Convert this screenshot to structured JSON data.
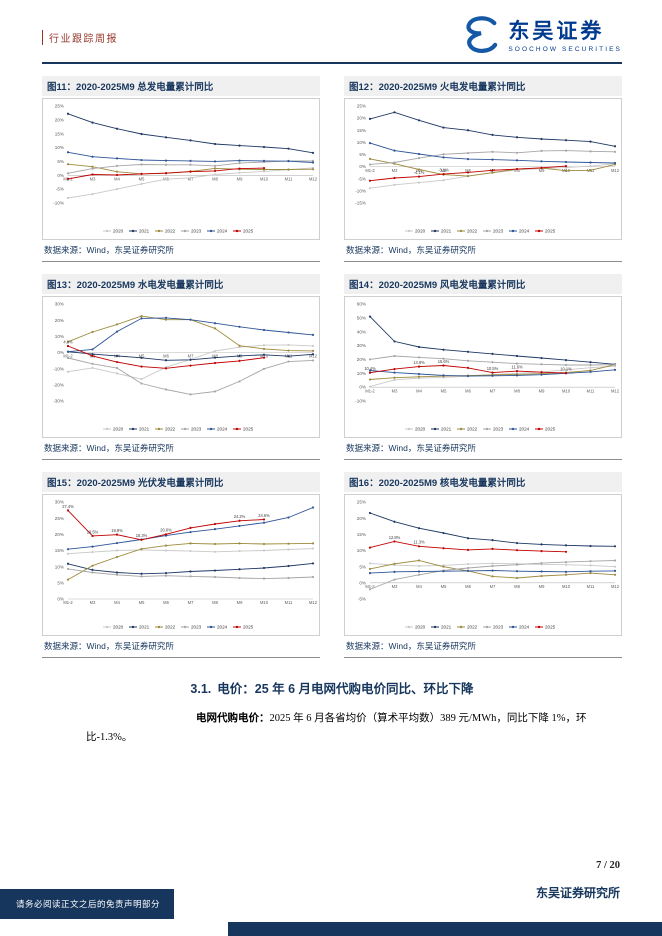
{
  "header": {
    "report_type": "行业跟踪周报",
    "brand": "东吴证券",
    "brand_sub": "SOOCHOW SECURITIES"
  },
  "source_note": "数据来源：Wind，东吴证券研究所",
  "chart_x_categories": [
    "M1-2",
    "M3",
    "M4",
    "M5",
    "M6",
    "M7",
    "M8",
    "M9",
    "M10",
    "M11",
    "M12"
  ],
  "series_colors": {
    "2020": "#c9c9c9",
    "2021": "#1f3864",
    "2022": "#9e8b3d",
    "2023": "#a6a6a6",
    "2024": "#2f5597",
    "2025": "#c00000"
  },
  "charts": [
    {
      "title": "图11：2020-2025M9 总发电量累计同比",
      "type": "line",
      "ylim": [
        -10,
        25
      ],
      "ystep": 5,
      "series": [
        {
          "name": "2020",
          "values": [
            -8.2,
            -6.8,
            -5.0,
            -3.1,
            -1.4,
            -0.9,
            0.3,
            0.9,
            1.4,
            2.0,
            2.7
          ]
        },
        {
          "name": "2021",
          "values": [
            22.2,
            19.0,
            16.8,
            14.9,
            13.7,
            12.6,
            11.3,
            10.7,
            10.2,
            9.6,
            8.1
          ]
        },
        {
          "name": "2022",
          "values": [
            4.0,
            3.1,
            1.3,
            0.5,
            0.7,
            1.4,
            2.5,
            2.2,
            2.1,
            2.1,
            2.2
          ]
        },
        {
          "name": "2023",
          "values": [
            0.7,
            2.4,
            3.4,
            3.9,
            3.8,
            3.8,
            3.4,
            4.4,
            4.8,
            5.2,
            5.2
          ]
        },
        {
          "name": "2024",
          "values": [
            8.3,
            6.7,
            6.1,
            5.5,
            5.3,
            5.2,
            5.0,
            5.3,
            5.2,
            5.1,
            4.6
          ]
        },
        {
          "name": "2025",
          "values": [
            -1.3,
            0.3,
            0.1,
            0.5,
            0.8,
            1.3,
            1.6,
            2.4,
            2.6,
            null,
            null
          ]
        }
      ]
    },
    {
      "title": "图12：2020-2025M9 火电发电量累计同比",
      "type": "line",
      "ylim": [
        -15,
        25
      ],
      "ystep": 5,
      "series": [
        {
          "name": "2020",
          "values": [
            -8.9,
            -7.5,
            -6.6,
            -5.6,
            -3.9,
            -2.5,
            -1.4,
            -0.8,
            -0.4,
            0.2,
            1.2
          ]
        },
        {
          "name": "2021",
          "values": [
            19.7,
            22.4,
            19.1,
            16.1,
            15.0,
            13.1,
            12.1,
            11.4,
            10.9,
            10.3,
            8.4
          ]
        },
        {
          "name": "2022",
          "values": [
            3.2,
            1.2,
            -1.2,
            -3.3,
            -3.9,
            -2.5,
            -1.0,
            -0.6,
            -1.7,
            -1.5,
            0.9
          ]
        },
        {
          "name": "2023",
          "values": [
            0.9,
            1.7,
            3.5,
            5.1,
            5.6,
            6.1,
            5.7,
            6.5,
            6.6,
            6.3,
            6.1
          ]
        },
        {
          "name": "2024",
          "values": [
            9.7,
            6.6,
            5.2,
            3.8,
            3.1,
            2.9,
            2.6,
            2.2,
            1.9,
            1.7,
            1.5
          ]
        },
        {
          "name": "2025",
          "values": [
            -5.8,
            -4.7,
            -4.1,
            -3.1,
            -2.4,
            -1.5,
            -1.0,
            -0.5,
            0.2,
            null,
            null
          ],
          "labels": [
            null,
            null,
            "-4.1%",
            "-3.1%",
            null,
            null,
            null,
            null,
            null,
            null,
            null
          ]
        }
      ]
    },
    {
      "title": "图13：2020-2025M9 水电发电量累计同比",
      "type": "line",
      "ylim": [
        -30,
        30
      ],
      "ystep": 10,
      "series": [
        {
          "name": "2020",
          "values": [
            -11.9,
            -9.5,
            -12.9,
            -16.5,
            -9.1,
            -4.3,
            0.9,
            3.3,
            4.5,
            4.7,
            4.1
          ]
        },
        {
          "name": "2021",
          "values": [
            0.5,
            -1.0,
            -2.1,
            -3.3,
            -4.8,
            -4.5,
            -3.2,
            -2.1,
            -1.4,
            -2.3,
            -1.1
          ]
        },
        {
          "name": "2022",
          "values": [
            6.6,
            12.7,
            17.4,
            22.5,
            20.3,
            20.3,
            14.9,
            4.2,
            2.2,
            1.2,
            1.0
          ]
        },
        {
          "name": "2023",
          "values": [
            -3.4,
            -7.0,
            -9.6,
            -19.2,
            -22.9,
            -25.9,
            -24.1,
            -17.9,
            -10.1,
            -5.6,
            -4.9
          ]
        },
        {
          "name": "2024",
          "values": [
            0.5,
            1.9,
            12.9,
            21.1,
            21.4,
            20.3,
            18.1,
            15.9,
            13.9,
            12.4,
            10.9
          ]
        },
        {
          "name": "2025",
          "values": [
            4.0,
            -2.1,
            -5.9,
            -8.7,
            -9.8,
            -8.1,
            -6.5,
            -5.2,
            -3.2,
            null,
            null
          ],
          "labels": [
            "4.0%",
            null,
            null,
            null,
            null,
            null,
            null,
            null,
            null,
            null,
            null
          ]
        }
      ]
    },
    {
      "title": "图14：2020-2025M9 风电发电量累计同比",
      "type": "line",
      "ylim": [
        -10,
        60
      ],
      "ystep": 10,
      "series": [
        {
          "name": "2020",
          "values": [
            0.4,
            5.2,
            6.5,
            7.0,
            7.9,
            9.0,
            10.0,
            11.0,
            12.5,
            14.0,
            15.1
          ]
        },
        {
          "name": "2021",
          "values": [
            50.9,
            33.0,
            29.0,
            27.0,
            25.5,
            24.0,
            22.5,
            21.0,
            19.5,
            18.0,
            16.5
          ]
        },
        {
          "name": "2022",
          "values": [
            5.5,
            6.8,
            7.5,
            8.0,
            8.3,
            8.8,
            9.2,
            9.8,
            10.5,
            12.0,
            16.3
          ]
        },
        {
          "name": "2023",
          "values": [
            20.0,
            22.5,
            21.5,
            20.5,
            19.0,
            18.0,
            17.0,
            16.5,
            16.0,
            16.0,
            16.2
          ]
        },
        {
          "name": "2024",
          "values": [
            12.0,
            10.5,
            9.5,
            8.5,
            8.0,
            8.2,
            8.5,
            9.0,
            10.0,
            11.0,
            12.5
          ]
        },
        {
          "name": "2025",
          "values": [
            10.4,
            13.0,
            14.8,
            15.6,
            13.9,
            10.5,
            11.6,
            10.8,
            10.1,
            null,
            null
          ],
          "labels": [
            "10.4%",
            null,
            "14.8%",
            "15.6%",
            null,
            "10.5%",
            "11.6%",
            null,
            "10.1%",
            null,
            null
          ]
        }
      ]
    },
    {
      "title": "图15：2020-2025M9 光伏发电量累计同比",
      "type": "line",
      "ylim": [
        0,
        30
      ],
      "ystep": 5,
      "series": [
        {
          "name": "2020",
          "values": [
            14.0,
            14.5,
            15.0,
            15.2,
            15.0,
            14.8,
            14.6,
            14.8,
            15.0,
            15.3,
            15.6
          ]
        },
        {
          "name": "2021",
          "values": [
            10.9,
            9.0,
            8.2,
            7.8,
            8.0,
            8.5,
            8.8,
            9.2,
            9.6,
            10.2,
            11.0
          ]
        },
        {
          "name": "2022",
          "values": [
            6.0,
            10.3,
            13.0,
            15.5,
            16.5,
            17.2,
            17.0,
            17.2,
            17.0,
            17.1,
            17.2
          ]
        },
        {
          "name": "2023",
          "values": [
            9.3,
            8.2,
            7.5,
            7.0,
            7.2,
            7.0,
            6.8,
            6.5,
            6.3,
            6.5,
            6.8
          ]
        },
        {
          "name": "2024",
          "values": [
            15.4,
            16.2,
            17.3,
            18.4,
            19.6,
            20.7,
            21.6,
            22.6,
            23.6,
            25.2,
            28.3
          ]
        },
        {
          "name": "2025",
          "values": [
            27.4,
            19.5,
            19.9,
            18.3,
            20.0,
            22.0,
            23.2,
            24.2,
            24.6,
            null,
            null
          ],
          "labels": [
            "27.4%",
            "19.5%",
            "19.9%",
            "18.3%",
            "20.0%",
            null,
            null,
            "24.2%",
            "24.6%",
            null,
            null
          ]
        }
      ]
    },
    {
      "title": "图16：2020-2025M9 核电发电量累计同比",
      "type": "line",
      "ylim": [
        -5,
        25
      ],
      "ystep": 5,
      "series": [
        {
          "name": "2020",
          "values": [
            6.0,
            5.5,
            5.2,
            5.4,
            5.8,
            6.0,
            5.9,
            5.7,
            5.6,
            5.4,
            5.0
          ]
        },
        {
          "name": "2021",
          "values": [
            21.6,
            18.9,
            16.9,
            15.4,
            13.8,
            13.2,
            12.3,
            11.9,
            11.6,
            11.4,
            11.3
          ]
        },
        {
          "name": "2022",
          "values": [
            4.3,
            5.9,
            6.9,
            5.0,
            3.7,
            2.0,
            1.5,
            2.1,
            2.5,
            3.0,
            2.5
          ]
        },
        {
          "name": "2023",
          "values": [
            -2.0,
            1.0,
            2.5,
            3.8,
            4.6,
            5.2,
            5.6,
            6.1,
            6.4,
            6.7,
            6.9
          ]
        },
        {
          "name": "2024",
          "values": [
            3.0,
            3.4,
            3.5,
            3.6,
            3.7,
            3.8,
            3.6,
            3.5,
            3.4,
            3.6,
            3.7
          ]
        },
        {
          "name": "2025",
          "values": [
            10.9,
            12.8,
            11.3,
            10.7,
            10.2,
            10.5,
            10.1,
            9.8,
            9.6,
            null,
            null
          ],
          "labels": [
            null,
            "12.8%",
            "11.3%",
            null,
            null,
            null,
            null,
            null,
            null,
            null,
            null
          ]
        }
      ]
    }
  ],
  "section": {
    "number": "3.1.",
    "title": "电价：25 年 6 月电网代购电价同比、环比下降",
    "body_lead": "电网代购电价：",
    "body_rest": "2025 年 6 月各省均价（算术平均数）389 元/MWh，同比下降 1%，环比-1.3%。"
  },
  "footer": {
    "page_number": "7 / 20",
    "institute": "东吴证券研究所",
    "disclaimer": "请务必阅读正文之后的免责声明部分"
  }
}
